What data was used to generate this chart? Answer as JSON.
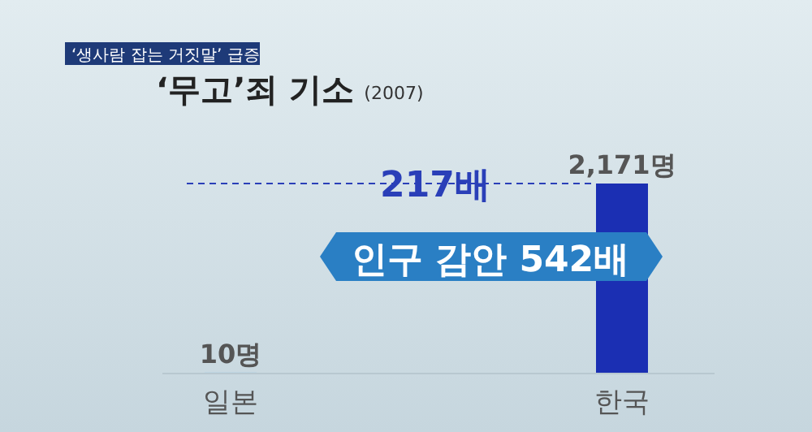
{
  "chart_data": {
    "type": "bar",
    "title": "‘무고’죄 기소",
    "subtitle": "(2007)",
    "categories": [
      "일본",
      "한국"
    ],
    "values": [
      10,
      2171
    ],
    "colors": [
      "#3fa9f5",
      "#1b2fb3"
    ],
    "value_labels": [
      "10명",
      "2,171명"
    ],
    "ref_lines": [
      {
        "axis": "y",
        "value": 2171,
        "label": "217배",
        "line_style": "dashed",
        "color": "#2a3fb8"
      }
    ],
    "annotations": [
      "‘생사람 잡는 거짓말’ 급증",
      "인구 감안 542배"
    ]
  }
}
